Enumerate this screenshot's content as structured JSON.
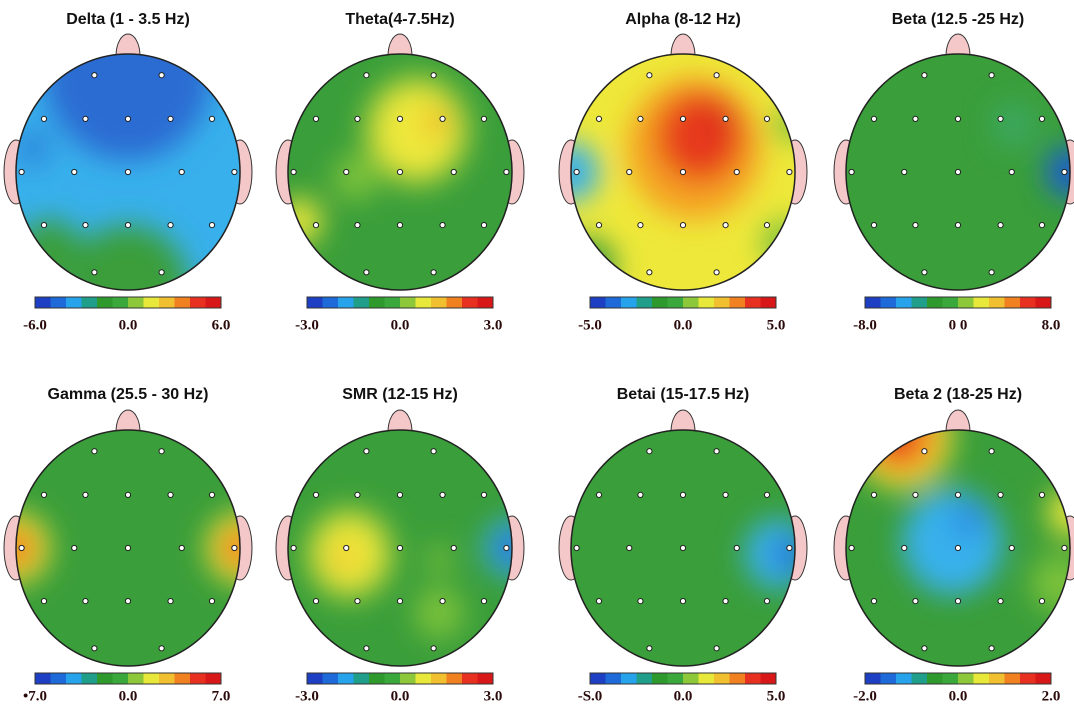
{
  "panels": [
    {
      "title": "Delta (1 - 3.5 Hz)",
      "scale": [
        "-6.0",
        "0.0",
        "6.0"
      ]
    },
    {
      "title": "Theta(4-7.5Hz)",
      "scale": [
        "-3.0",
        "0.0",
        "3.0"
      ]
    },
    {
      "title": "Alpha (8-12 Hz)",
      "scale": [
        "-5.0",
        "0.0",
        "5.0"
      ]
    },
    {
      "title": "Beta (12.5 -25 Hz)",
      "scale": [
        "-8.0",
        "0 0",
        "8.0"
      ]
    },
    {
      "title": "Gamma (25.5 - 30 Hz)",
      "scale": [
        "•7.0",
        "0.0",
        "7.0"
      ]
    },
    {
      "title": "SMR (12-15 Hz)",
      "scale": [
        "-3.0",
        "0.0",
        "3.0"
      ]
    },
    {
      "title": "Betai (15-17.5 Hz)",
      "scale": [
        "-S.0",
        "0.0",
        "5.0"
      ]
    },
    {
      "title": "Beta 2 (18-25 Hz)",
      "scale": [
        "-2.0",
        "0.0",
        "2.0"
      ]
    }
  ]
}
